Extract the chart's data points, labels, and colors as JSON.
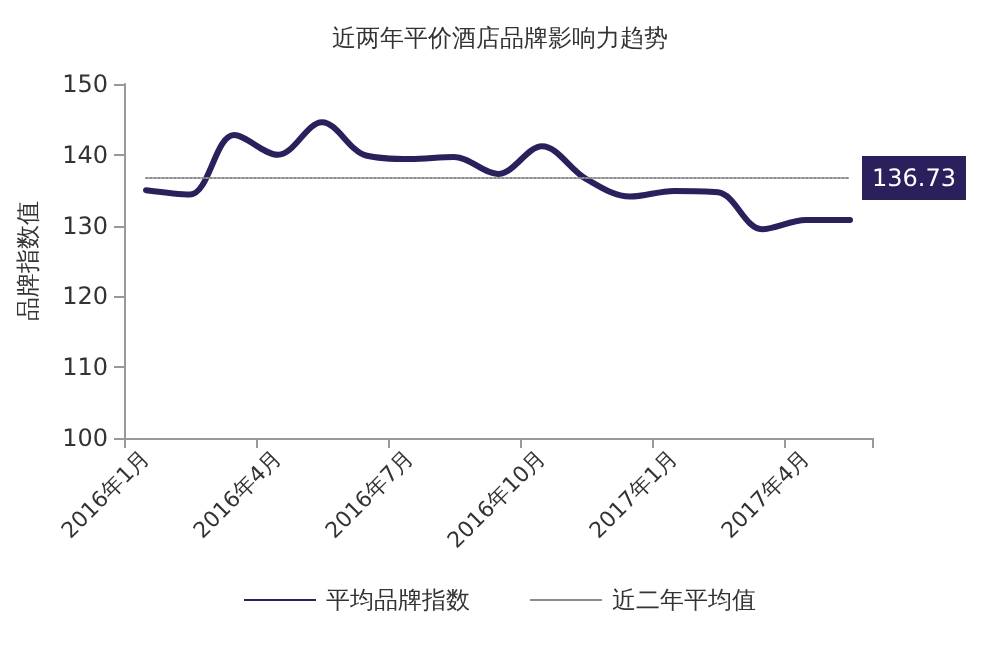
{
  "chart_data": {
    "type": "line",
    "title": "近两年平价酒店品牌影响力趋势",
    "ylabel": "品牌指数值",
    "categories": [
      "2016年1月",
      null,
      null,
      "2016年4月",
      null,
      null,
      "2016年7月",
      null,
      null,
      "2016年10月",
      null,
      null,
      "2017年1月",
      null,
      null,
      "2017年4月",
      null
    ],
    "series": [
      {
        "name": "平均品牌指数",
        "color": "#2b1f5c",
        "line_style": "solid",
        "values": [
          135.0,
          134.4,
          142.8,
          140.0,
          144.6,
          139.9,
          139.4,
          139.7,
          137.3,
          141.2,
          136.6,
          134.1,
          134.9,
          134.7,
          129.5,
          130.8,
          130.8
        ]
      },
      {
        "name": "近二年平均值",
        "color": "#8c8c8c",
        "line_style": "dotted",
        "values": [
          136.73,
          136.73,
          136.73,
          136.73,
          136.73,
          136.73,
          136.73,
          136.73,
          136.73,
          136.73,
          136.73,
          136.73,
          136.73,
          136.73,
          136.73,
          136.73,
          136.73
        ],
        "value_labels": [
          null,
          null,
          null,
          null,
          null,
          null,
          null,
          null,
          null,
          null,
          null,
          null,
          null,
          null,
          null,
          null,
          "136.73"
        ]
      }
    ],
    "ylim": [
      100,
      150
    ],
    "yticks": [
      100,
      110,
      120,
      130,
      140,
      150
    ],
    "grid": false,
    "legend": "bottom",
    "marker": "none"
  }
}
